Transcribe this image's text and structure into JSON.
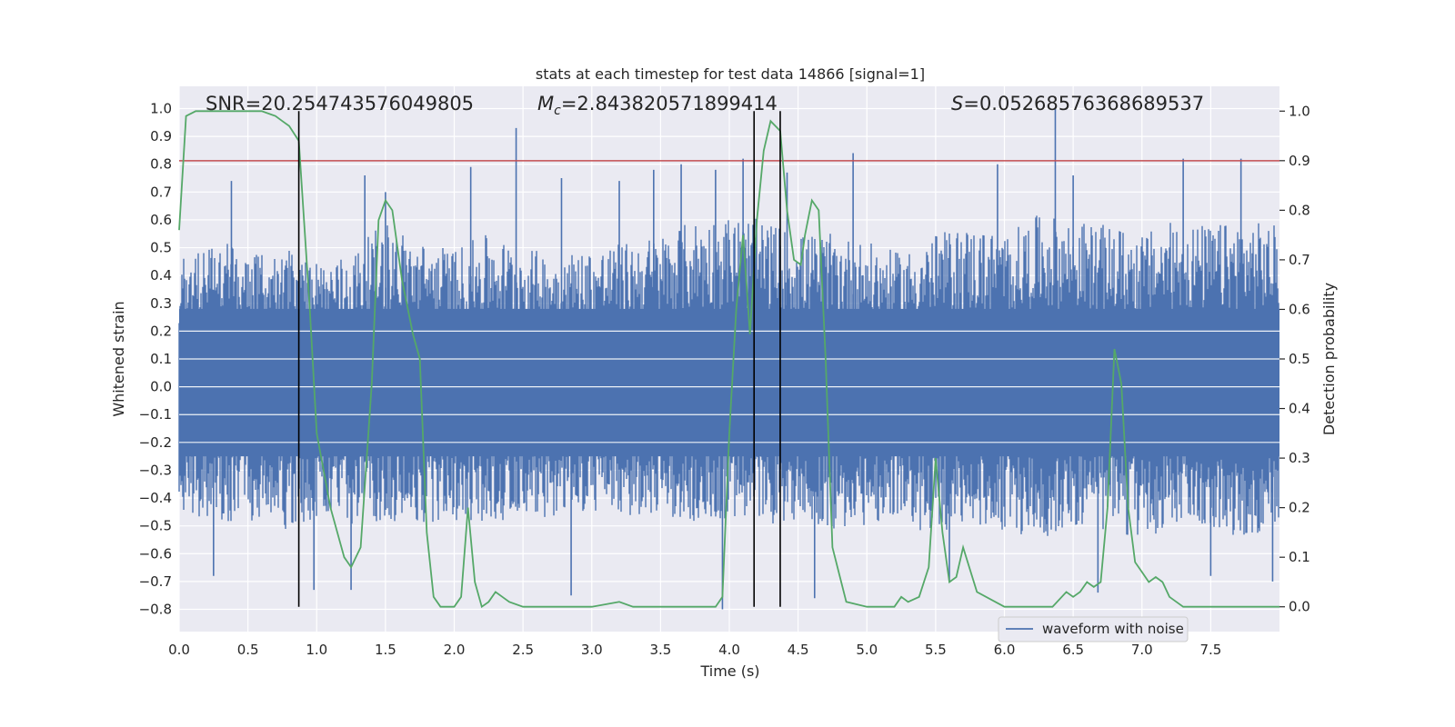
{
  "chart_data": {
    "type": "line",
    "title": "stats at each timestep for test data 14866 [signal=1]",
    "xlabel": "Time (s)",
    "ylabel_left": "Whitened strain",
    "ylabel_right": "Detection probability",
    "xlim": [
      0.0,
      8.0
    ],
    "ylim_left": [
      -0.88,
      1.08
    ],
    "ylim_right": [
      -0.05,
      1.05
    ],
    "x_ticks": [
      "0.0",
      "0.5",
      "1.0",
      "1.5",
      "2.0",
      "2.5",
      "3.0",
      "3.5",
      "4.0",
      "4.5",
      "5.0",
      "5.5",
      "6.0",
      "6.5",
      "7.0",
      "7.5"
    ],
    "y_ticks_left": [
      "1.0",
      "0.9",
      "0.8",
      "0.7",
      "0.6",
      "0.5",
      "0.4",
      "0.3",
      "0.2",
      "0.1",
      "0.0",
      "−0.1",
      "−0.2",
      "−0.3",
      "−0.4",
      "−0.5",
      "−0.6",
      "−0.7",
      "−0.8"
    ],
    "y_ticks_right": [
      "1.0",
      "0.9",
      "0.8",
      "0.7",
      "0.6",
      "0.5",
      "0.4",
      "0.3",
      "0.2",
      "0.1",
      "0.0"
    ],
    "grid": true,
    "legend": {
      "position": "lower-right",
      "entries": [
        "waveform with noise"
      ]
    },
    "annotations": {
      "snr": "SNR=20.254743576049805",
      "mc_symbol": "M",
      "mc_sub": "c",
      "mc_value": "=2.843820571899414",
      "s_symbol": "S",
      "s_value": "=0.05268576368689537"
    },
    "threshold": 0.9,
    "vertical_lines_x": [
      0.87,
      4.18,
      4.37
    ],
    "series": [
      {
        "name": "waveform with noise",
        "color": "#4c72b0",
        "envelope": {
          "x": [
            0.0,
            0.25,
            0.5,
            0.75,
            1.0,
            1.25,
            1.5,
            1.75,
            2.0,
            2.25,
            2.5,
            2.75,
            3.0,
            3.25,
            3.5,
            3.75,
            4.0,
            4.25,
            4.5,
            4.75,
            5.0,
            5.25,
            5.5,
            5.75,
            6.0,
            6.25,
            6.5,
            6.75,
            7.0,
            7.25,
            7.5,
            7.75,
            8.0
          ],
          "upper": [
            0.45,
            0.55,
            0.48,
            0.5,
            0.45,
            0.48,
            0.6,
            0.52,
            0.5,
            0.55,
            0.5,
            0.48,
            0.5,
            0.52,
            0.55,
            0.6,
            0.62,
            0.6,
            0.55,
            0.55,
            0.52,
            0.48,
            0.55,
            0.58,
            0.55,
            0.62,
            0.6,
            0.58,
            0.55,
            0.6,
            0.58,
            0.6,
            0.58
          ],
          "lower": [
            -0.45,
            -0.5,
            -0.48,
            -0.52,
            -0.5,
            -0.5,
            -0.48,
            -0.5,
            -0.48,
            -0.5,
            -0.45,
            -0.48,
            -0.45,
            -0.48,
            -0.45,
            -0.5,
            -0.48,
            -0.5,
            -0.48,
            -0.52,
            -0.5,
            -0.48,
            -0.55,
            -0.5,
            -0.52,
            -0.55,
            -0.5,
            -0.52,
            -0.55,
            -0.5,
            -0.52,
            -0.55,
            -0.5
          ]
        },
        "spikes": [
          {
            "x": 0.38,
            "y": 0.74
          },
          {
            "x": 1.35,
            "y": 0.76
          },
          {
            "x": 1.5,
            "y": 0.7
          },
          {
            "x": 2.12,
            "y": 0.79
          },
          {
            "x": 2.45,
            "y": 0.93
          },
          {
            "x": 2.78,
            "y": 0.75
          },
          {
            "x": 3.2,
            "y": 0.74
          },
          {
            "x": 3.45,
            "y": 0.78
          },
          {
            "x": 3.65,
            "y": 0.8
          },
          {
            "x": 3.9,
            "y": 0.78
          },
          {
            "x": 4.1,
            "y": 0.82
          },
          {
            "x": 4.42,
            "y": 0.77
          },
          {
            "x": 4.9,
            "y": 0.84
          },
          {
            "x": 5.95,
            "y": 0.8
          },
          {
            "x": 6.37,
            "y": 1.0
          },
          {
            "x": 6.5,
            "y": 0.76
          },
          {
            "x": 7.3,
            "y": 0.82
          },
          {
            "x": 7.72,
            "y": 0.82
          },
          {
            "x": 0.25,
            "y": -0.68
          },
          {
            "x": 0.98,
            "y": -0.73
          },
          {
            "x": 1.25,
            "y": -0.73
          },
          {
            "x": 2.85,
            "y": -0.75
          },
          {
            "x": 3.95,
            "y": -0.8
          },
          {
            "x": 4.62,
            "y": -0.76
          },
          {
            "x": 5.6,
            "y": -0.7
          },
          {
            "x": 6.68,
            "y": -0.74
          },
          {
            "x": 7.5,
            "y": -0.68
          },
          {
            "x": 7.95,
            "y": -0.7
          }
        ]
      },
      {
        "name": "",
        "color": "#55a868",
        "axis": "right",
        "x": [
          0.0,
          0.05,
          0.12,
          0.2,
          0.3,
          0.4,
          0.5,
          0.6,
          0.7,
          0.75,
          0.8,
          0.87,
          0.95,
          1.0,
          1.1,
          1.2,
          1.25,
          1.32,
          1.4,
          1.45,
          1.5,
          1.55,
          1.62,
          1.7,
          1.75,
          1.8,
          1.85,
          1.9,
          2.0,
          2.05,
          2.1,
          2.15,
          2.2,
          2.25,
          2.3,
          2.35,
          2.4,
          2.5,
          2.7,
          3.0,
          3.2,
          3.3,
          3.5,
          3.7,
          3.8,
          3.9,
          3.95,
          4.0,
          4.05,
          4.1,
          4.15,
          4.2,
          4.25,
          4.3,
          4.37,
          4.42,
          4.47,
          4.52,
          4.55,
          4.6,
          4.65,
          4.7,
          4.75,
          4.85,
          5.0,
          5.1,
          5.2,
          5.25,
          5.3,
          5.38,
          5.45,
          5.5,
          5.55,
          5.6,
          5.65,
          5.7,
          5.8,
          6.0,
          6.2,
          6.3,
          6.35,
          6.45,
          6.5,
          6.55,
          6.6,
          6.65,
          6.7,
          6.75,
          6.8,
          6.85,
          6.9,
          6.95,
          7.0,
          7.05,
          7.1,
          7.15,
          7.2,
          7.25,
          7.3,
          7.5,
          7.7,
          8.0
        ],
        "y": [
          0.76,
          0.99,
          1.0,
          1.0,
          1.0,
          1.0,
          1.0,
          1.0,
          0.99,
          0.98,
          0.97,
          0.94,
          0.6,
          0.35,
          0.2,
          0.1,
          0.08,
          0.12,
          0.45,
          0.78,
          0.82,
          0.8,
          0.66,
          0.55,
          0.5,
          0.15,
          0.02,
          0.0,
          0.0,
          0.02,
          0.2,
          0.05,
          0.0,
          0.01,
          0.03,
          0.02,
          0.01,
          0.0,
          0.0,
          0.0,
          0.01,
          0.0,
          0.0,
          0.0,
          0.0,
          0.0,
          0.02,
          0.35,
          0.6,
          0.75,
          0.55,
          0.78,
          0.92,
          0.98,
          0.96,
          0.8,
          0.7,
          0.69,
          0.75,
          0.82,
          0.8,
          0.5,
          0.12,
          0.01,
          0.0,
          0.0,
          0.0,
          0.02,
          0.01,
          0.02,
          0.08,
          0.3,
          0.15,
          0.05,
          0.06,
          0.12,
          0.03,
          0.0,
          0.0,
          0.0,
          0.0,
          0.03,
          0.02,
          0.03,
          0.05,
          0.04,
          0.05,
          0.2,
          0.52,
          0.45,
          0.2,
          0.09,
          0.07,
          0.05,
          0.06,
          0.05,
          0.02,
          0.01,
          0.0,
          0.0,
          0.0,
          0.0
        ]
      }
    ]
  }
}
